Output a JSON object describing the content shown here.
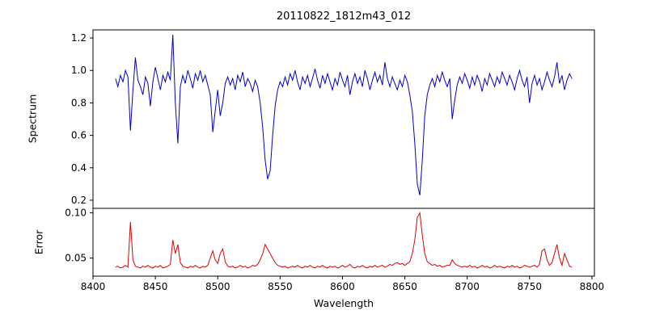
{
  "figure": {
    "title": "20110822_1812m43_012",
    "xlabel": "Wavelength",
    "xlim": [
      8400,
      8802
    ],
    "xticks": [
      8400,
      8450,
      8500,
      8550,
      8600,
      8650,
      8700,
      8750,
      8800
    ],
    "xtick_labels": [
      "8400",
      "8450",
      "8500",
      "8550",
      "8600",
      "8650",
      "8700",
      "8750",
      "8800"
    ]
  },
  "chart_data": [
    {
      "type": "line",
      "name": "spectrum",
      "ylabel": "Spectrum",
      "color": "#0000cc",
      "ylim": [
        0.15,
        1.25
      ],
      "yticks": [
        0.2,
        0.4,
        0.6,
        0.8,
        1.0,
        1.2
      ],
      "ytick_labels": [
        "0.2",
        "0.4",
        "0.6",
        "0.8",
        "1.0",
        "1.2"
      ],
      "x_start": 8418,
      "x_step": 2,
      "values": [
        0.95,
        0.9,
        0.97,
        0.93,
        1.0,
        0.96,
        0.63,
        0.88,
        1.08,
        0.94,
        0.9,
        0.85,
        0.96,
        0.92,
        0.78,
        0.93,
        1.02,
        0.95,
        0.88,
        0.97,
        0.93,
        0.99,
        0.94,
        1.22,
        0.8,
        0.55,
        0.9,
        0.97,
        0.92,
        1.0,
        0.95,
        0.89,
        0.98,
        0.94,
        1.0,
        0.93,
        0.97,
        0.91,
        0.85,
        0.62,
        0.75,
        0.88,
        0.72,
        0.8,
        0.92,
        0.96,
        0.91,
        0.95,
        0.88,
        0.97,
        0.93,
        0.99,
        0.9,
        0.95,
        0.92,
        0.87,
        0.94,
        0.9,
        0.8,
        0.65,
        0.45,
        0.33,
        0.38,
        0.6,
        0.78,
        0.88,
        0.93,
        0.9,
        0.96,
        0.91,
        0.98,
        0.94,
        1.0,
        0.93,
        0.88,
        0.96,
        0.92,
        0.97,
        0.9,
        0.95,
        1.01,
        0.94,
        0.89,
        0.97,
        0.92,
        0.98,
        0.93,
        0.88,
        0.95,
        0.91,
        0.99,
        0.94,
        0.9,
        0.97,
        0.85,
        0.93,
        0.98,
        0.92,
        0.96,
        0.9,
        1.0,
        0.95,
        0.88,
        0.94,
        0.99,
        0.93,
        0.97,
        0.91,
        1.05,
        0.95,
        0.9,
        0.96,
        0.92,
        0.88,
        0.94,
        0.9,
        0.97,
        0.93,
        0.85,
        0.75,
        0.55,
        0.3,
        0.23,
        0.45,
        0.72,
        0.85,
        0.91,
        0.95,
        0.9,
        0.97,
        0.93,
        0.99,
        0.94,
        0.9,
        0.95,
        0.7,
        0.82,
        0.91,
        0.96,
        0.92,
        0.98,
        0.94,
        0.89,
        0.96,
        0.91,
        0.97,
        0.93,
        0.87,
        0.95,
        0.91,
        0.98,
        0.94,
        0.9,
        0.96,
        0.92,
        0.99,
        0.95,
        0.91,
        0.97,
        0.93,
        0.88,
        0.95,
        1.0,
        0.94,
        0.9,
        0.96,
        0.8,
        0.92,
        0.97,
        0.91,
        0.95,
        0.88,
        0.93,
        0.99,
        0.94,
        0.9,
        0.96,
        1.05,
        0.92,
        0.97,
        0.88,
        0.94,
        0.98,
        0.95
      ]
    },
    {
      "type": "line",
      "name": "error",
      "ylabel": "Error",
      "color": "#e00000",
      "ylim": [
        0.03,
        0.105
      ],
      "yticks": [
        0.05,
        0.1
      ],
      "ytick_labels": [
        "0.05",
        "0.10"
      ],
      "x_start": 8418,
      "x_step": 2,
      "values": [
        0.04,
        0.041,
        0.039,
        0.04,
        0.042,
        0.04,
        0.09,
        0.048,
        0.041,
        0.04,
        0.039,
        0.041,
        0.04,
        0.042,
        0.04,
        0.039,
        0.041,
        0.04,
        0.042,
        0.039,
        0.04,
        0.041,
        0.043,
        0.07,
        0.055,
        0.065,
        0.045,
        0.041,
        0.04,
        0.039,
        0.041,
        0.04,
        0.042,
        0.04,
        0.039,
        0.041,
        0.04,
        0.042,
        0.05,
        0.058,
        0.048,
        0.044,
        0.055,
        0.06,
        0.046,
        0.041,
        0.04,
        0.041,
        0.039,
        0.04,
        0.042,
        0.04,
        0.041,
        0.039,
        0.04,
        0.042,
        0.041,
        0.043,
        0.048,
        0.055,
        0.065,
        0.06,
        0.055,
        0.05,
        0.045,
        0.042,
        0.041,
        0.04,
        0.041,
        0.039,
        0.04,
        0.041,
        0.04,
        0.042,
        0.04,
        0.039,
        0.041,
        0.04,
        0.042,
        0.04,
        0.039,
        0.041,
        0.04,
        0.042,
        0.04,
        0.039,
        0.041,
        0.04,
        0.041,
        0.039,
        0.04,
        0.042,
        0.04,
        0.041,
        0.043,
        0.04,
        0.039,
        0.041,
        0.04,
        0.042,
        0.04,
        0.039,
        0.041,
        0.04,
        0.042,
        0.04,
        0.041,
        0.042,
        0.04,
        0.041,
        0.043,
        0.042,
        0.044,
        0.045,
        0.043,
        0.044,
        0.042,
        0.044,
        0.046,
        0.055,
        0.07,
        0.095,
        0.1,
        0.075,
        0.055,
        0.046,
        0.044,
        0.042,
        0.043,
        0.041,
        0.042,
        0.04,
        0.041,
        0.042,
        0.042,
        0.048,
        0.044,
        0.042,
        0.041,
        0.04,
        0.041,
        0.04,
        0.042,
        0.04,
        0.041,
        0.039,
        0.04,
        0.042,
        0.04,
        0.041,
        0.039,
        0.04,
        0.042,
        0.04,
        0.041,
        0.04,
        0.039,
        0.041,
        0.04,
        0.042,
        0.04,
        0.041,
        0.039,
        0.04,
        0.042,
        0.041,
        0.04,
        0.041,
        0.042,
        0.04,
        0.043,
        0.058,
        0.06,
        0.048,
        0.042,
        0.045,
        0.055,
        0.065,
        0.05,
        0.042,
        0.055,
        0.048,
        0.041,
        0.04
      ]
    }
  ]
}
